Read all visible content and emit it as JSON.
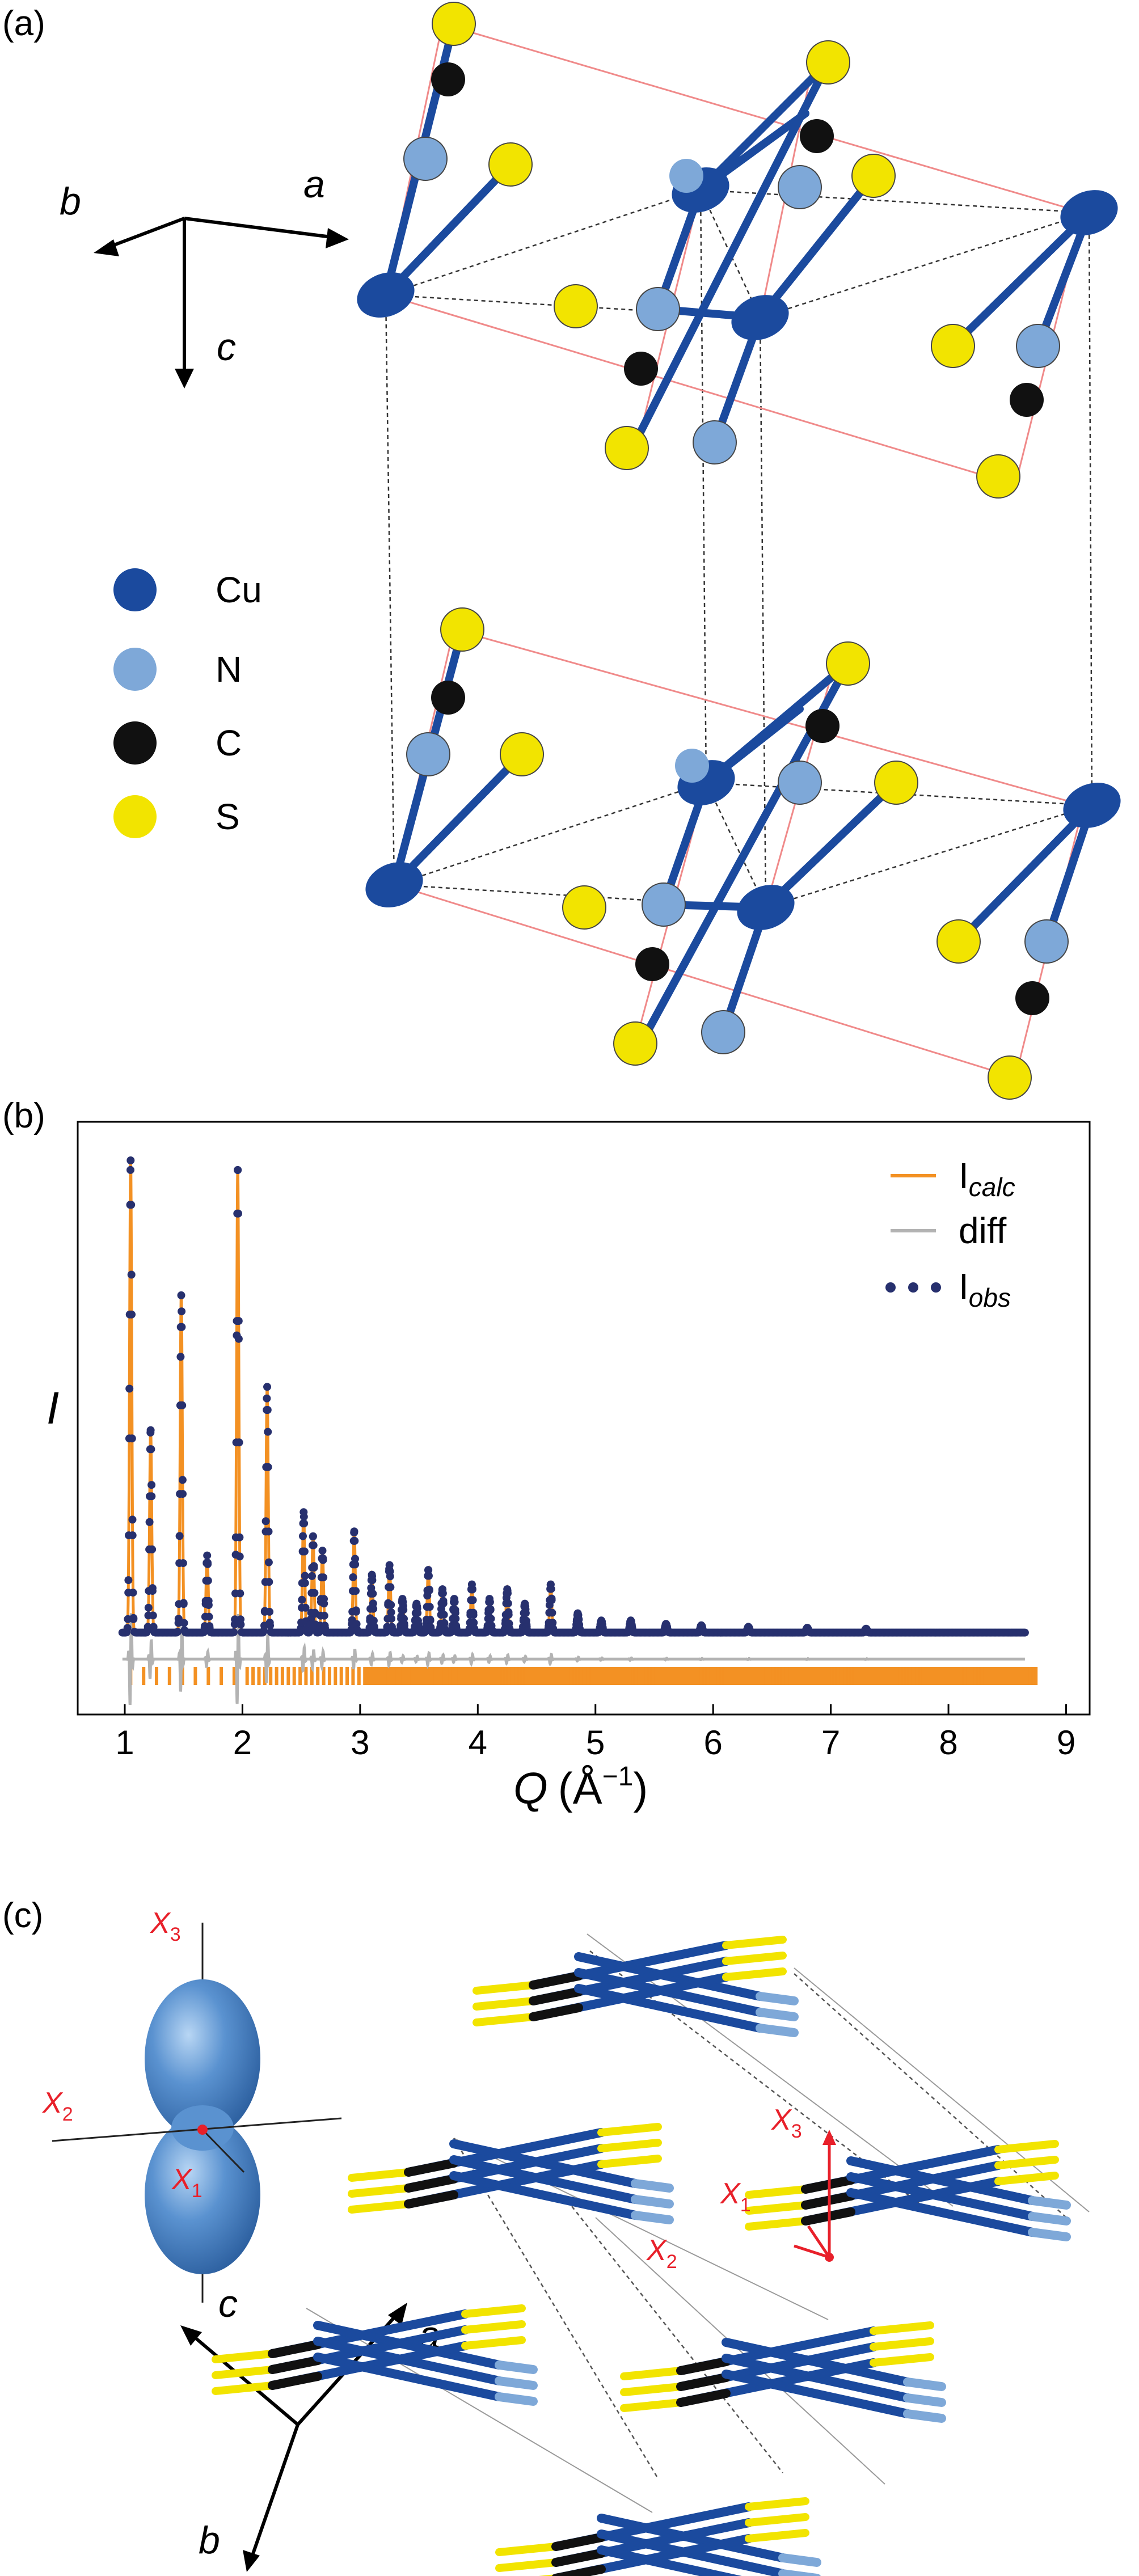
{
  "figure": {
    "panels": {
      "a": "(a)",
      "b": "(b)",
      "c": "(c)"
    },
    "colors": {
      "cu": "#1b4a9e",
      "n": "#7ea8d8",
      "c": "#111111",
      "s": "#f2e400",
      "calc": "#f39123",
      "diff": "#b3b3b3",
      "obs": "#27306e",
      "cell": "#f08a8a",
      "red": "#e8202a",
      "surface": "#5a92d0"
    }
  },
  "panel_a": {
    "axes": {
      "a": "a",
      "b": "b",
      "c": "c"
    },
    "legend": [
      {
        "label": "Cu",
        "color": "#1b4a9e"
      },
      {
        "label": "N",
        "color": "#7ea8d8"
      },
      {
        "label": "C",
        "color": "#111111"
      },
      {
        "label": "S",
        "color": "#f2e400"
      }
    ]
  },
  "panel_c": {
    "axes": {
      "a": "a",
      "b": "b",
      "c": "c"
    },
    "local_axes_left": {
      "x1": "X",
      "x1_sub": "1",
      "x2": "X",
      "x2_sub": "2",
      "x3": "X",
      "x3_sub": "3"
    },
    "local_axes_right": {
      "x1": "X",
      "x1_sub": "1",
      "x2": "X",
      "x2_sub": "2",
      "x3": "X",
      "x3_sub": "3"
    }
  },
  "chart_data": {
    "type": "line",
    "title": "",
    "xlabel_main": "Q",
    "xlabel_unit": "(Å",
    "xlabel_exp": "−1",
    "xlabel_close": ")",
    "ylabel": "I",
    "xlim": [
      0.6,
      9.2
    ],
    "ylim": [
      -0.17,
      1.06
    ],
    "xticks": [
      1,
      2,
      3,
      4,
      5,
      6,
      7,
      8,
      9
    ],
    "legend": [
      {
        "name": "I",
        "sub": "calc",
        "style": "line",
        "color": "#f39123"
      },
      {
        "name": "diff",
        "sub": "",
        "style": "line",
        "color": "#b3b3b3"
      },
      {
        "name": "I",
        "sub": "obs",
        "style": "dots",
        "color": "#27306e"
      }
    ],
    "baseline": 0.0,
    "diff_offset": -0.055,
    "tick_row_offset": -0.09,
    "x_end": 8.65,
    "peaks": [
      {
        "q": 1.05,
        "i": 0.98
      },
      {
        "q": 1.22,
        "i": 0.42
      },
      {
        "q": 1.48,
        "i": 0.7
      },
      {
        "q": 1.7,
        "i": 0.16
      },
      {
        "q": 1.96,
        "i": 0.96
      },
      {
        "q": 2.21,
        "i": 0.51
      },
      {
        "q": 2.52,
        "i": 0.25
      },
      {
        "q": 2.6,
        "i": 0.2
      },
      {
        "q": 2.68,
        "i": 0.17
      },
      {
        "q": 2.95,
        "i": 0.21
      },
      {
        "q": 3.1,
        "i": 0.12
      },
      {
        "q": 3.25,
        "i": 0.14
      },
      {
        "q": 3.36,
        "i": 0.07
      },
      {
        "q": 3.48,
        "i": 0.06
      },
      {
        "q": 3.58,
        "i": 0.13
      },
      {
        "q": 3.7,
        "i": 0.09
      },
      {
        "q": 3.8,
        "i": 0.07
      },
      {
        "q": 3.95,
        "i": 0.1
      },
      {
        "q": 4.1,
        "i": 0.07
      },
      {
        "q": 4.25,
        "i": 0.09
      },
      {
        "q": 4.4,
        "i": 0.06
      },
      {
        "q": 4.62,
        "i": 0.1
      },
      {
        "q": 4.85,
        "i": 0.04
      },
      {
        "q": 5.05,
        "i": 0.025
      },
      {
        "q": 5.3,
        "i": 0.025
      },
      {
        "q": 5.6,
        "i": 0.018
      },
      {
        "q": 5.9,
        "i": 0.015
      },
      {
        "q": 6.3,
        "i": 0.012
      },
      {
        "q": 6.8,
        "i": 0.01
      },
      {
        "q": 7.3,
        "i": 0.008
      }
    ]
  }
}
